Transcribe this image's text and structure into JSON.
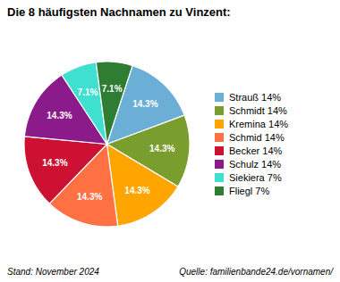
{
  "chart_data": {
    "type": "pie",
    "title": "Die 8 häufigsten Nachnamen zu Vinzent:",
    "categories": [
      "Strauß 14%",
      "Schmidt 14%",
      "Kremina 14%",
      "Schmid 14%",
      "Becker 14%",
      "Schulz 14%",
      "Siekiera 7%",
      "Fliegl 7%"
    ],
    "values": [
      14.3,
      14.3,
      14.3,
      14.3,
      14.3,
      14.3,
      7.1,
      7.1
    ],
    "value_labels": [
      "14.3%",
      "14.3%",
      "14.3%",
      "14.3%",
      "14.3%",
      "14.3%",
      "7.1%",
      "7.1%"
    ],
    "colors": [
      "#6baed6",
      "#7a9e2e",
      "#ffa500",
      "#ff7043",
      "#cc1133",
      "#8b1a8b",
      "#40e0d0",
      "#2e7d32"
    ],
    "data_labels": true,
    "legend": "right",
    "annotations": [
      "Stand: November 2024",
      "Quelle: familienbande24.de/vornamen/"
    ]
  }
}
